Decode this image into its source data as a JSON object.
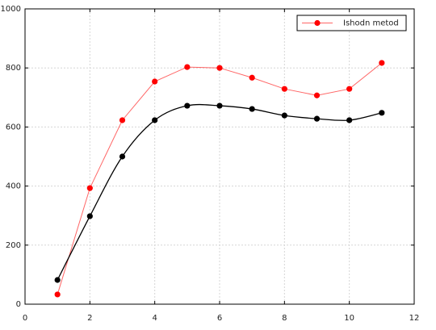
{
  "chart_data": {
    "type": "line",
    "x": [
      1,
      2,
      3,
      4,
      5,
      6,
      7,
      8,
      9,
      10,
      11
    ],
    "series": [
      {
        "name": "Ishodn metod",
        "color": "#ff0000",
        "smooth": false,
        "values": [
          33,
          393,
          623,
          754,
          803,
          800,
          767,
          729,
          707,
          729,
          817
        ]
      },
      {
        "color": "#000000",
        "smooth": true,
        "values": [
          82,
          298,
          500,
          623,
          672,
          672,
          661,
          639,
          628,
          623,
          648
        ]
      }
    ],
    "xlim": [
      0,
      12
    ],
    "xticks": [
      0,
      2,
      4,
      6,
      8,
      10,
      12
    ],
    "ylim": [
      0,
      1000
    ],
    "yticks": [
      0,
      200,
      400,
      600,
      800,
      1000
    ],
    "grid": true,
    "legend": "upper right"
  }
}
